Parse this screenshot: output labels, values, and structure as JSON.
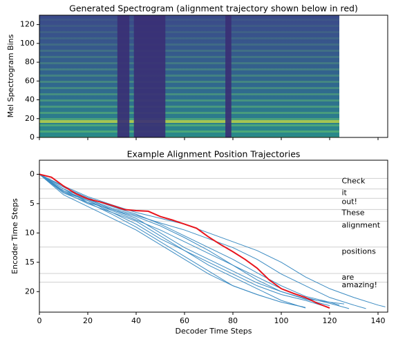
{
  "chart_data": [
    {
      "type": "spectrogram",
      "title": "Generated Spectrogram (alignment trajectory shown below in red)",
      "ylabel": "Mel Spectrogram Bins",
      "xlim": [
        0,
        144
      ],
      "xticks": [
        0,
        20,
        40,
        60,
        80,
        100,
        120,
        140
      ],
      "ylim": [
        0,
        130
      ],
      "yticks": [
        0,
        20,
        40,
        60,
        80,
        100,
        120
      ],
      "image_extent": [
        0,
        124
      ]
    },
    {
      "type": "line",
      "title": "Example Alignment Position Trajectories",
      "xlabel": "Decoder Time Steps",
      "ylabel": "Encoder Time Steps",
      "xlim": [
        0,
        144
      ],
      "xticks": [
        0,
        20,
        40,
        60,
        80,
        100,
        120,
        140
      ],
      "ylim": [
        23.5,
        -2.4
      ],
      "yticks": [
        0,
        5,
        10,
        15,
        20
      ],
      "hlines": [
        0.7,
        2.5,
        4.1,
        6.0,
        8.0,
        12.4,
        16.9,
        18.4
      ],
      "annotations": [
        {
          "text": "Check",
          "x": 125,
          "y": 1.2
        },
        {
          "text": "it",
          "x": 125,
          "y": 3.2
        },
        {
          "text": "out!",
          "x": 125,
          "y": 4.7
        },
        {
          "text": "These",
          "x": 125,
          "y": 6.6
        },
        {
          "text": "alignment",
          "x": 125,
          "y": 8.7
        },
        {
          "text": "positions",
          "x": 125,
          "y": 13.2
        },
        {
          "text": "are",
          "x": 125,
          "y": 17.6
        },
        {
          "text": "amazing!",
          "x": 125,
          "y": 18.9
        }
      ],
      "series": [
        {
          "color": "#3b8bc2",
          "x": [
            0,
            10,
            20,
            30,
            40,
            50,
            60,
            70,
            80,
            90,
            100,
            110
          ],
          "values": [
            0,
            2.8,
            4.5,
            6.5,
            8,
            10.5,
            13,
            15.5,
            17.5,
            19.5,
            21.5,
            22.8
          ]
        },
        {
          "color": "#3b8bc2",
          "x": [
            0,
            10,
            20,
            30,
            40,
            50,
            60,
            70,
            80,
            90,
            100,
            110,
            120,
            130,
            140,
            143
          ],
          "values": [
            0,
            2,
            3.8,
            5.2,
            6.5,
            7.5,
            8.5,
            10,
            11.5,
            13,
            15,
            17.5,
            19.5,
            21,
            22.3,
            22.6
          ]
        },
        {
          "color": "#3b8bc2",
          "x": [
            0,
            10,
            20,
            30,
            40,
            50,
            60,
            70,
            80,
            90,
            100,
            110,
            120,
            130,
            135
          ],
          "values": [
            0,
            2.5,
            4.2,
            5.8,
            7,
            8.3,
            9.5,
            11,
            12.5,
            14.5,
            17,
            19,
            21,
            22.3,
            22.9
          ]
        },
        {
          "color": "#3b8bc2",
          "x": [
            0,
            10,
            20,
            30,
            40,
            50,
            60,
            70,
            80,
            90,
            100,
            110,
            120,
            128
          ],
          "values": [
            0,
            3,
            4.5,
            6.2,
            7.8,
            9.5,
            11.5,
            13.5,
            15.5,
            17.5,
            19.5,
            21,
            22,
            22.9
          ]
        },
        {
          "color": "#3b8bc2",
          "x": [
            0,
            10,
            20,
            30,
            40,
            50,
            60,
            70,
            80,
            90,
            100,
            110,
            120,
            126
          ],
          "values": [
            0,
            3.2,
            4.8,
            6,
            7.5,
            10,
            12.5,
            14.5,
            16.5,
            18.5,
            20,
            21.2,
            21.8,
            22.1
          ]
        },
        {
          "color": "#3b8bc2",
          "x": [
            0,
            10,
            20,
            30,
            40,
            50,
            60,
            70,
            80,
            90,
            100,
            110
          ],
          "values": [
            0,
            2.5,
            4.8,
            6.8,
            9,
            11.5,
            14,
            16.5,
            19,
            20.5,
            21.8,
            22.7
          ]
        },
        {
          "color": "#3b8bc2",
          "x": [
            0,
            10,
            20,
            30,
            40,
            50,
            60,
            70,
            80,
            90,
            100,
            110,
            118
          ],
          "values": [
            0,
            3,
            5,
            6.5,
            8.5,
            11,
            13,
            15,
            17,
            19,
            20.5,
            21.5,
            22.5
          ]
        },
        {
          "color": "#3b8bc2",
          "x": [
            0,
            10,
            20,
            30,
            40,
            50,
            60,
            70,
            80,
            90,
            100,
            110,
            120,
            124
          ],
          "values": [
            0,
            2.2,
            4,
            5.5,
            6.8,
            8.5,
            10.5,
            12.5,
            14.5,
            16.8,
            19,
            20.8,
            21.8,
            22.3
          ]
        },
        {
          "color": "#3b8bc2",
          "x": [
            0,
            10,
            20,
            30,
            40,
            50,
            60,
            70,
            80,
            90,
            100,
            109
          ],
          "values": [
            0,
            3.5,
            5.5,
            7.5,
            9.5,
            12,
            14.5,
            17,
            19,
            20.5,
            21.8,
            22.6
          ]
        },
        {
          "color": "#3b8bc2",
          "x": [
            0,
            10,
            20,
            30,
            40,
            50,
            60,
            70,
            80,
            90,
            100,
            110,
            120
          ],
          "values": [
            0,
            2.8,
            4.3,
            6,
            7.2,
            8.8,
            10.8,
            13,
            15.5,
            18,
            20,
            21.3,
            22.4
          ]
        },
        {
          "color": "#e8141c",
          "highlight": true,
          "x": [
            0,
            5,
            10,
            15,
            20,
            25,
            30,
            35,
            40,
            45,
            50,
            55,
            60,
            65,
            70,
            75,
            80,
            85,
            90,
            95,
            100,
            105,
            110,
            115,
            120
          ],
          "values": [
            0,
            0.5,
            2,
            3.3,
            4.2,
            4.7,
            5.3,
            6,
            6.2,
            6.3,
            7.2,
            7.8,
            8.5,
            9.2,
            10.7,
            12,
            13.2,
            14.5,
            16,
            18,
            19.5,
            20.3,
            21,
            22,
            22.8
          ]
        }
      ]
    }
  ]
}
